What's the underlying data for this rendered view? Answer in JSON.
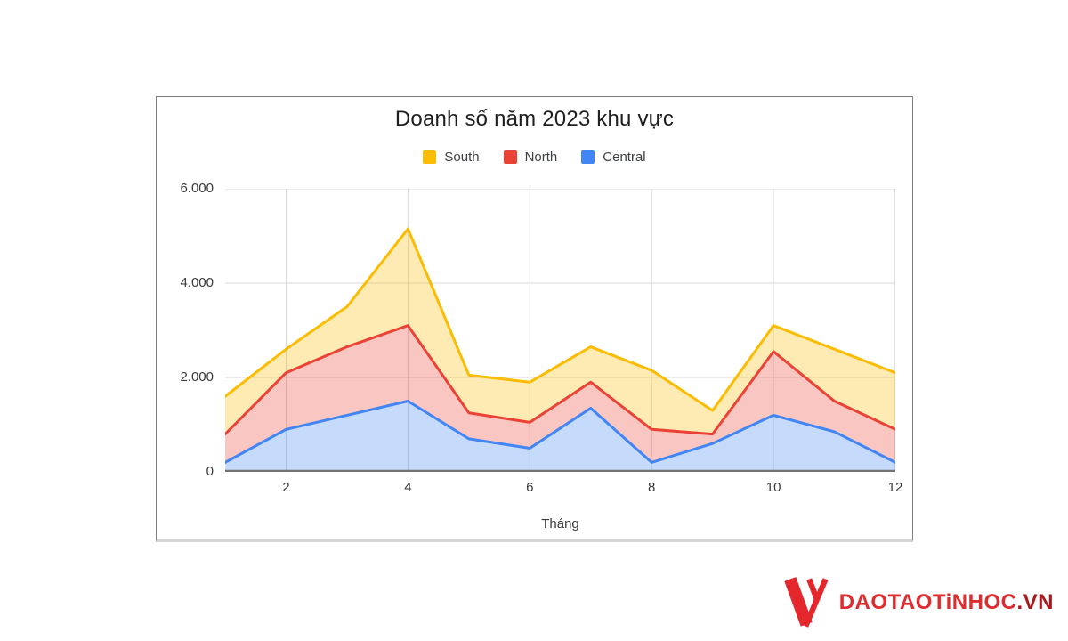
{
  "chart_data": {
    "type": "area",
    "title": "Doanh số năm 2023 khu vực",
    "x": [
      1,
      2,
      3,
      4,
      5,
      6,
      7,
      8,
      9,
      10,
      11,
      12
    ],
    "series": [
      {
        "name": "South",
        "color": "#FBBC04",
        "values": [
          1600,
          2600,
          3500,
          5150,
          2050,
          1900,
          2650,
          2150,
          1300,
          3100,
          2600,
          2100
        ]
      },
      {
        "name": "North",
        "color": "#EA4335",
        "values": [
          800,
          2100,
          2650,
          3100,
          1250,
          1050,
          1900,
          900,
          800,
          2550,
          1500,
          900
        ]
      },
      {
        "name": "Central",
        "color": "#4285F4",
        "values": [
          200,
          900,
          1200,
          1500,
          700,
          500,
          1350,
          200,
          600,
          1200,
          850,
          200
        ]
      }
    ],
    "bands_fill_between_series": true,
    "fill_opacity": 0.3,
    "xlim": [
      1,
      12
    ],
    "ylim": [
      0,
      6000
    ],
    "yticks": [
      {
        "v": 0,
        "label": "0"
      },
      {
        "v": 2000,
        "label": "2.000"
      },
      {
        "v": 4000,
        "label": "4.000"
      },
      {
        "v": 6000,
        "label": "6.000"
      }
    ],
    "xticks": [
      {
        "v": 2,
        "label": "2"
      },
      {
        "v": 4,
        "label": "4"
      },
      {
        "v": 6,
        "label": "6"
      },
      {
        "v": 8,
        "label": "8"
      },
      {
        "v": 10,
        "label": "10"
      },
      {
        "v": 12,
        "label": "12"
      }
    ],
    "xlabel": "Tháng",
    "grid": true,
    "grid_color": "#d9d9d9",
    "axis_color": "#757575",
    "legend_position": "top"
  },
  "watermark": {
    "text_main": "DAOTAOTiNHOC",
    "text_suffix": ".VN",
    "color_main": "#e02b2f",
    "color_suffix": "#a8191d",
    "emblem_color": "#e4272c"
  }
}
